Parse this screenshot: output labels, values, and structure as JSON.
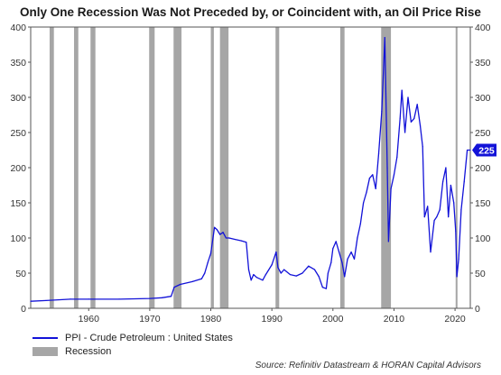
{
  "chart_data": {
    "type": "line",
    "title": "Only One Recession Was Not Preceded by, or Coincident with, an Oil Price Rise",
    "xlabel": "",
    "ylabel": "",
    "xlim": [
      1950.5,
      2022.5
    ],
    "ylim": [
      0,
      400
    ],
    "x_ticks": [
      "1960",
      "1970",
      "1980",
      "1990",
      "2000",
      "2010",
      "2020"
    ],
    "y_ticks": [
      "0",
      "50",
      "100",
      "150",
      "200",
      "250",
      "300",
      "350",
      "400"
    ],
    "grid": false,
    "legend_position": "bottom-left",
    "last_value_label": "225",
    "series": [
      {
        "name": "PPI - Crude Petroleum : United States",
        "color": "#1212d8",
        "x": [
          1950.5,
          1953,
          1957,
          1960,
          1965,
          1970,
          1972,
          1973.5,
          1974,
          1975,
          1977,
          1978.5,
          1979,
          1979.5,
          1980,
          1980.6,
          1981,
          1981.5,
          1982,
          1982.5,
          1983,
          1984,
          1985,
          1985.8,
          1986.2,
          1986.6,
          1987,
          1987.5,
          1988.5,
          1989,
          1990,
          1990.7,
          1991,
          1991.5,
          1992,
          1993,
          1994,
          1995,
          1996,
          1997,
          1997.7,
          1998.3,
          1998.9,
          1999.2,
          1999.7,
          2000,
          2000.5,
          2001,
          2001.5,
          2001.9,
          2002.4,
          2003,
          2003.5,
          2004,
          2004.5,
          2005,
          2005.5,
          2006,
          2006.5,
          2007,
          2007.5,
          2008,
          2008.5,
          2008.9,
          2009.1,
          2009.5,
          2010,
          2010.5,
          2011,
          2011.3,
          2011.8,
          2012.3,
          2012.8,
          2013.3,
          2013.8,
          2014.3,
          2014.7,
          2015,
          2015.5,
          2016,
          2016.6,
          2017,
          2017.5,
          2018,
          2018.5,
          2018.9,
          2019.3,
          2019.8,
          2020.1,
          2020.3,
          2020.6,
          2021,
          2021.5,
          2022,
          2022.5
        ],
        "y": [
          10,
          11,
          13,
          13,
          13,
          14,
          15,
          17,
          30,
          34,
          38,
          42,
          50,
          65,
          78,
          115,
          112,
          105,
          108,
          100,
          100,
          98,
          96,
          94,
          55,
          40,
          48,
          44,
          40,
          48,
          62,
          80,
          58,
          50,
          55,
          48,
          46,
          50,
          60,
          55,
          45,
          30,
          28,
          50,
          65,
          85,
          95,
          80,
          65,
          45,
          70,
          80,
          70,
          100,
          120,
          150,
          165,
          185,
          190,
          170,
          220,
          280,
          385,
          200,
          95,
          170,
          190,
          215,
          270,
          310,
          250,
          300,
          265,
          270,
          290,
          260,
          230,
          130,
          145,
          80,
          125,
          130,
          140,
          180,
          200,
          130,
          175,
          150,
          110,
          45,
          70,
          140,
          180,
          225,
          225
        ]
      }
    ],
    "recessions": [
      [
        1953.6,
        1954.3
      ],
      [
        1957.6,
        1958.3
      ],
      [
        1960.3,
        1961.1
      ],
      [
        1969.9,
        1970.8
      ],
      [
        1973.9,
        1975.2
      ],
      [
        1980.0,
        1980.5
      ],
      [
        1981.5,
        1982.9
      ],
      [
        1990.6,
        1991.2
      ],
      [
        2001.2,
        2001.9
      ],
      [
        2007.9,
        2009.5
      ],
      [
        2020.1,
        2020.4
      ]
    ],
    "legend": [
      {
        "label": "PPI - Crude Petroleum : United States",
        "color": "#1212d8"
      },
      {
        "label": "Recession",
        "color": "#a6a6a6"
      }
    ],
    "source": "Source: Refinitiv Datastream & HORAN Capital Advisors"
  }
}
